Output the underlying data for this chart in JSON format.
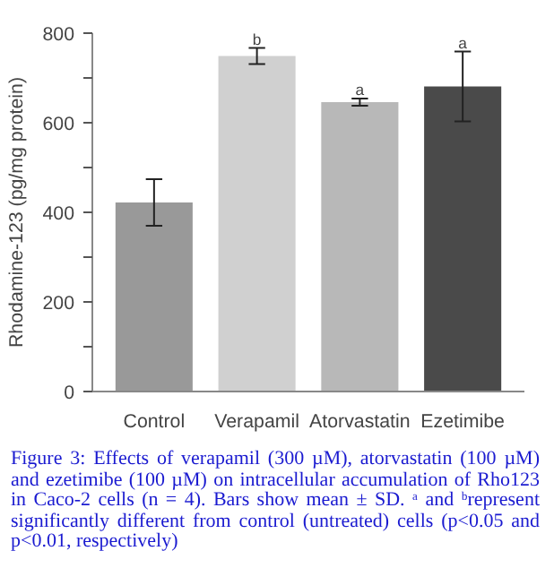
{
  "chart_data": {
    "type": "bar",
    "ylabel": "Rhodamine-123 (pg/mg protein)",
    "categories": [
      "Control",
      "Verapamil",
      "Atorvastatin",
      "Ezetimibe"
    ],
    "values": [
      422,
      749,
      646,
      681
    ],
    "colors": [
      "#999999",
      "#d0d0d0",
      "#b8b8b8",
      "#4a4a4a"
    ],
    "errors": [
      52,
      18,
      8,
      78
    ],
    "ylim": [
      0,
      800
    ],
    "yticks": [
      0,
      {
        "value": 100,
        "label": null
      },
      200,
      {
        "value": 300,
        "label": null
      },
      400,
      {
        "value": 500,
        "label": null
      },
      600,
      {
        "value": 700,
        "label": null
      },
      800
    ],
    "grid": false,
    "annotations": [
      {
        "text": "b",
        "x": "Verapamil",
        "y": 767
      },
      {
        "text": "a",
        "x": "Atorvastatin",
        "y": 654
      },
      {
        "text": "a",
        "x": "Ezetimibe",
        "y": 759
      },
      "Figure 3: Effects of verapamil (300 µM), atorvastatin (100 µM) and ezetimibe (100 µM) on intracellular accumulation of Rho123 in Caco-2 cells (n = 4). Bars show mean ± SD. ᵃ and ᵇrepresent significantly different from control (untreated) cells (p<0.05 and p<0.01, respectively)"
    ]
  }
}
